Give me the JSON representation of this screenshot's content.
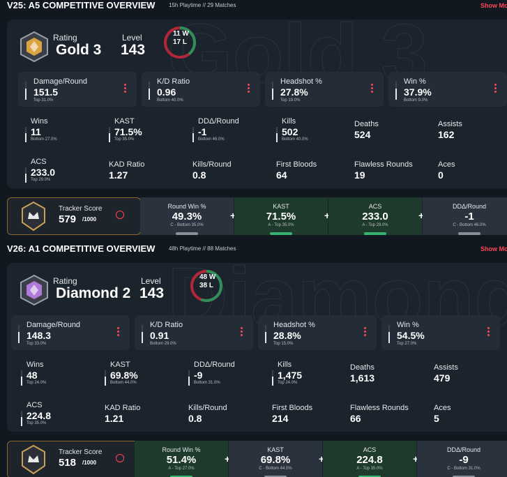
{
  "sections": [
    {
      "title": "V25: A5 COMPETITIVE OVERVIEW",
      "meta": "15h Playtime // 29 Matches",
      "show_more": "Show More",
      "rating_label": "Rating",
      "rank": "Gold 3",
      "level_label": "Level",
      "level": "143",
      "emblem_color": "#d9a441",
      "wins": {
        "value": 11,
        "label": "11 W"
      },
      "losses": {
        "value": 17,
        "label": "17 L"
      },
      "cards": [
        {
          "label": "Damage/Round",
          "value": "151.5",
          "sub": "Top 31.0%"
        },
        {
          "label": "K/D Ratio",
          "value": "0.96",
          "sub": "Bottom 40.0%"
        },
        {
          "label": "Headshot %",
          "value": "27.8%",
          "sub": "Top 19.0%"
        },
        {
          "label": "Win %",
          "value": "37.9%",
          "sub": "Bottom 9.0%"
        }
      ],
      "stats": [
        {
          "label": "Wins",
          "value": "11",
          "sub": "Bottom 27.0%"
        },
        {
          "label": "KAST",
          "value": "71.5%",
          "sub": "Top 35.0%"
        },
        {
          "label": "DDΔ/Round",
          "value": "-1",
          "sub": "Bottom 46.0%"
        },
        {
          "label": "Kills",
          "value": "502",
          "sub": "Bottom 40.0%"
        },
        {
          "label": "Deaths",
          "value": "524"
        },
        {
          "label": "Assists",
          "value": "162"
        },
        {
          "label": "ACS",
          "value": "233.0",
          "sub": "Top 29.0%"
        },
        {
          "label": "KAD Ratio",
          "value": "1.27"
        },
        {
          "label": "Kills/Round",
          "value": "0.8"
        },
        {
          "label": "First Bloods",
          "value": "64"
        },
        {
          "label": "Flawless Rounds",
          "value": "19"
        },
        {
          "label": "Aces",
          "value": "0"
        }
      ],
      "tracker": {
        "label": "Tracker Score",
        "score": "579",
        "max": "/1000",
        "segments": [
          {
            "label": "Round Win %",
            "value": "49.3%",
            "sub": "C - Bottom 35.0%",
            "color": "#2a333d"
          },
          {
            "label": "KAST",
            "value": "71.5%",
            "sub": "A - Top 35.0%",
            "color": "#1e3a2c"
          },
          {
            "label": "ACS",
            "value": "233.0",
            "sub": "A - Top 29.0%",
            "color": "#1e3a2c"
          },
          {
            "label": "DDΔ/Round",
            "value": "-1",
            "sub": "C - Bottom 46.0%",
            "color": "#2a333d"
          }
        ]
      }
    },
    {
      "title": "V26: A1 COMPETITIVE OVERVIEW",
      "meta": "48h Playtime // 88 Matches",
      "show_more": "Show More",
      "rating_label": "Rating",
      "rank": "Diamond 2",
      "level_label": "Level",
      "level": "143",
      "emblem_color": "#b07ad9",
      "wins": {
        "value": 48,
        "label": "48 W"
      },
      "losses": {
        "value": 38,
        "label": "38 L"
      },
      "cards": [
        {
          "label": "Damage/Round",
          "value": "148.3",
          "sub": "Top 33.0%"
        },
        {
          "label": "K/D Ratio",
          "value": "0.91",
          "sub": "Bottom 29.0%"
        },
        {
          "label": "Headshot %",
          "value": "28.8%",
          "sub": "Top 15.0%"
        },
        {
          "label": "Win %",
          "value": "54.5%",
          "sub": "Top 27.0%"
        }
      ],
      "stats": [
        {
          "label": "Wins",
          "value": "48",
          "sub": "Top 24.0%"
        },
        {
          "label": "KAST",
          "value": "69.8%",
          "sub": "Bottom 44.0%"
        },
        {
          "label": "DDΔ/Round",
          "value": "-9",
          "sub": "Bottom 31.0%"
        },
        {
          "label": "Kills",
          "value": "1,475",
          "sub": "Top 24.0%"
        },
        {
          "label": "Deaths",
          "value": "1,613"
        },
        {
          "label": "Assists",
          "value": "479"
        },
        {
          "label": "ACS",
          "value": "224.8",
          "sub": "Top 35.0%"
        },
        {
          "label": "KAD Ratio",
          "value": "1.21"
        },
        {
          "label": "Kills/Round",
          "value": "0.8"
        },
        {
          "label": "First Bloods",
          "value": "214"
        },
        {
          "label": "Flawless Rounds",
          "value": "66"
        },
        {
          "label": "Aces",
          "value": "5"
        }
      ],
      "tracker": {
        "label": "Tracker Score",
        "score": "518",
        "max": "/1000",
        "segments": [
          {
            "label": "Round Win %",
            "value": "51.4%",
            "sub": "A - Top 27.0%",
            "color": "#1e3a2c"
          },
          {
            "label": "KAST",
            "value": "69.8%",
            "sub": "C - Bottom 44.0%",
            "color": "#2a333d"
          },
          {
            "label": "ACS",
            "value": "224.8",
            "sub": "A - Top 35.0%",
            "color": "#1e3a2c"
          },
          {
            "label": "DDΔ/Round",
            "value": "-9",
            "sub": "C - Bottom 31.0%",
            "color": "#2a333d"
          }
        ]
      }
    }
  ]
}
